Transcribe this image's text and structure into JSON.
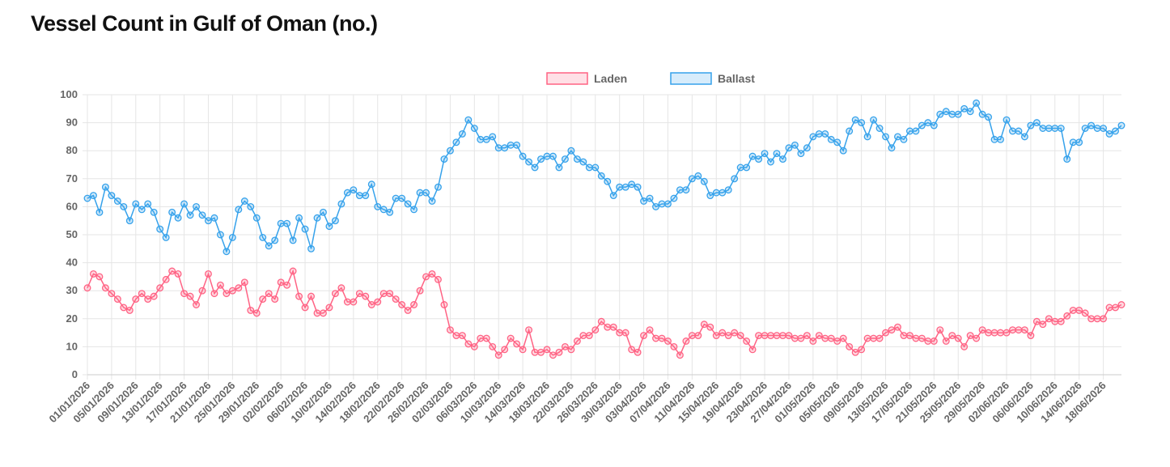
{
  "chart_data": {
    "type": "line",
    "title": "Vessel Count in Gulf of Oman (no.)",
    "categories": [
      "01/01/2026",
      null,
      null,
      null,
      "05/01/2026",
      null,
      null,
      null,
      "09/01/2026",
      null,
      null,
      null,
      "13/01/2026",
      null,
      null,
      null,
      "17/01/2026",
      null,
      null,
      null,
      "21/01/2026",
      null,
      null,
      null,
      "25/01/2026",
      null,
      null,
      null,
      "29/01/2026",
      null,
      null,
      null,
      "02/02/2026",
      null,
      null,
      null,
      "06/02/2026",
      null,
      null,
      null,
      "10/02/2026",
      null,
      null,
      null,
      "14/02/2026",
      null,
      null,
      null,
      "18/02/2026",
      null,
      null,
      null,
      "22/02/2026",
      null,
      null,
      null,
      "26/02/2026",
      null,
      null,
      null,
      "02/03/2026",
      null,
      null,
      null,
      "06/03/2026",
      null,
      null,
      null,
      "10/03/2026",
      null,
      null,
      null,
      "14/03/2026",
      null,
      null,
      null,
      "18/03/2026",
      null,
      null,
      null,
      "22/03/2026",
      null,
      null,
      null,
      "26/03/2026",
      null,
      null,
      null,
      "30/03/2026",
      null,
      null,
      null,
      "03/04/2026",
      null,
      null,
      null,
      "07/04/2026",
      null,
      null,
      null,
      "11/04/2026",
      null,
      null,
      null,
      "15/04/2026",
      null,
      null,
      null,
      "19/04/2026",
      null,
      null,
      null,
      "23/04/2026",
      null,
      null,
      null,
      "27/04/2026",
      null,
      null,
      null,
      "01/05/2026",
      null,
      null,
      null,
      "05/05/2026",
      null,
      null,
      null,
      "09/05/2026",
      null,
      null,
      null,
      "13/05/2026",
      null,
      null,
      null,
      "17/05/2026",
      null,
      null,
      null,
      "21/05/2026",
      null,
      null,
      null,
      "25/05/2026",
      null,
      null,
      null,
      "29/05/2026",
      null,
      null,
      null,
      "02/06/2026",
      null,
      null,
      null,
      "06/06/2026",
      null,
      null,
      null,
      "10/06/2026",
      null,
      null,
      null,
      "14/06/2026",
      null,
      null,
      null,
      "18/06/2026",
      null,
      null,
      null
    ],
    "series": [
      {
        "name": "Laden",
        "color": "#ff6384",
        "values": [
          31,
          36,
          35,
          31,
          29,
          27,
          24,
          23,
          27,
          29,
          27,
          28,
          31,
          34,
          37,
          36,
          29,
          28,
          25,
          30,
          36,
          29,
          32,
          29,
          30,
          31,
          33,
          23,
          22,
          27,
          29,
          27,
          33,
          32,
          37,
          28,
          24,
          28,
          22,
          22,
          24,
          29,
          31,
          26,
          26,
          29,
          28,
          25,
          26,
          29,
          29,
          27,
          25,
          23,
          25,
          30,
          35,
          36,
          34,
          25,
          16,
          14,
          14,
          11,
          10,
          13,
          13,
          10,
          7,
          9,
          13,
          11,
          9,
          16,
          8,
          8,
          9,
          7,
          8,
          10,
          9,
          12,
          14,
          14,
          16,
          19,
          17,
          17,
          15,
          15,
          9,
          8,
          14,
          16,
          13,
          13,
          12,
          10,
          7,
          12,
          14,
          14,
          18,
          17,
          14,
          15,
          14,
          15,
          14,
          12,
          9,
          14,
          14,
          14,
          14,
          14,
          14,
          13,
          13,
          14,
          12,
          14,
          13,
          13,
          12,
          13,
          10,
          8,
          9,
          13,
          13,
          13,
          15,
          16,
          17,
          14,
          14,
          13,
          13,
          12,
          12,
          16,
          12,
          14,
          13,
          10,
          14,
          13,
          16,
          15,
          15,
          15,
          15,
          16,
          16,
          16,
          14,
          19,
          18,
          20,
          19,
          19,
          21,
          23,
          23,
          22,
          20,
          20,
          20,
          24,
          24,
          25
        ]
      },
      {
        "name": "Ballast",
        "color": "#36a2eb",
        "values": [
          63,
          64,
          58,
          67,
          64,
          62,
          60,
          55,
          61,
          59,
          61,
          58,
          52,
          49,
          58,
          56,
          61,
          57,
          60,
          57,
          55,
          56,
          50,
          44,
          49,
          59,
          62,
          60,
          56,
          49,
          46,
          48,
          54,
          54,
          48,
          56,
          52,
          45,
          56,
          58,
          53,
          55,
          61,
          65,
          66,
          64,
          64,
          68,
          60,
          59,
          58,
          63,
          63,
          61,
          59,
          65,
          65,
          62,
          67,
          77,
          80,
          83,
          86,
          91,
          88,
          84,
          84,
          85,
          81,
          81,
          82,
          82,
          78,
          76,
          74,
          77,
          78,
          78,
          74,
          77,
          80,
          77,
          76,
          74,
          74,
          71,
          69,
          64,
          67,
          67,
          68,
          67,
          62,
          63,
          60,
          61,
          61,
          63,
          66,
          66,
          70,
          71,
          69,
          64,
          65,
          65,
          66,
          70,
          74,
          74,
          78,
          77,
          79,
          76,
          79,
          77,
          81,
          82,
          79,
          81,
          85,
          86,
          86,
          84,
          83,
          80,
          87,
          91,
          90,
          85,
          91,
          88,
          85,
          81,
          85,
          84,
          87,
          87,
          89,
          90,
          89,
          93,
          94,
          93,
          93,
          95,
          94,
          97,
          93,
          92,
          84,
          84,
          91,
          87,
          87,
          85,
          89,
          90,
          88,
          88,
          88,
          88,
          77,
          83,
          83,
          88,
          89,
          88,
          88,
          86,
          87,
          89
        ]
      }
    ],
    "ylim": [
      0,
      100
    ],
    "yticks": [
      0,
      10,
      20,
      30,
      40,
      50,
      60,
      70,
      80,
      90,
      100
    ],
    "grid": true,
    "legend": "top"
  }
}
